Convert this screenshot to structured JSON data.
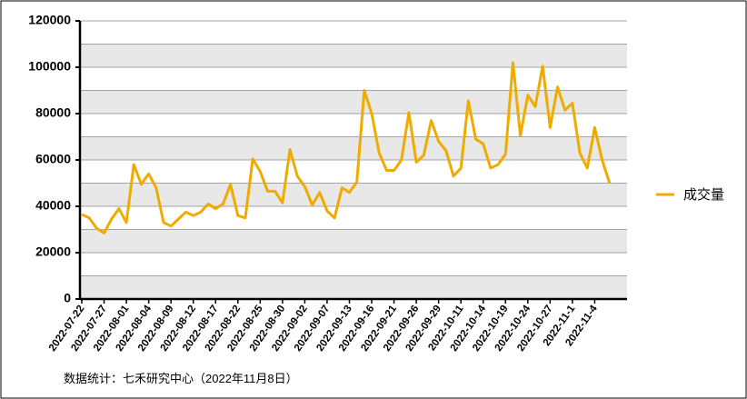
{
  "chart_data": {
    "type": "line",
    "categories": [
      "2022-07-22",
      null,
      null,
      "2022-07-27",
      null,
      null,
      "2022-08-01",
      null,
      null,
      "2022-08-04",
      null,
      null,
      "2022-08-09",
      null,
      null,
      "2022-08-12",
      null,
      null,
      "2022-08-17",
      null,
      null,
      "2022-08-22",
      null,
      null,
      "2022-08-25",
      null,
      null,
      "2022-08-30",
      null,
      null,
      "2022-09-02",
      null,
      null,
      "2022-09-07",
      null,
      null,
      "2022-09-13",
      null,
      null,
      "2022-09-16",
      null,
      null,
      "2022-09-21",
      null,
      null,
      "2022-09-26",
      null,
      null,
      "2022-09-29",
      null,
      null,
      "2022-10-11",
      null,
      null,
      "2022-10-14",
      null,
      null,
      "2022-10-19",
      null,
      null,
      "2022-10-24",
      null,
      null,
      "2022-10-27",
      null,
      null,
      "2022-11-1",
      null,
      null,
      "2022-11-4",
      null,
      null
    ],
    "series": [
      {
        "name": "成交量",
        "color": "#f0ab00",
        "values": [
          36500,
          35000,
          30500,
          28500,
          34500,
          39000,
          33000,
          58000,
          49500,
          54000,
          48000,
          33000,
          31500,
          34500,
          37500,
          36000,
          37500,
          41000,
          39000,
          41000,
          49500,
          36000,
          35000,
          60500,
          55000,
          46500,
          46500,
          41500,
          64500,
          53000,
          48500,
          40500,
          46000,
          38000,
          35000,
          48000,
          46000,
          50500,
          90000,
          80000,
          63000,
          55500,
          55500,
          60000,
          80500,
          59000,
          62000,
          77000,
          68000,
          64000,
          53000,
          56500,
          85500,
          69000,
          67000,
          56500,
          58000,
          62500,
          102000,
          70500,
          88000,
          83000,
          100500,
          74000,
          91500,
          81500,
          84500,
          63000,
          56500,
          74000,
          60000,
          50000
        ]
      }
    ],
    "ylim": [
      0,
      120000
    ],
    "yticks": [
      0,
      20000,
      40000,
      60000,
      80000,
      100000,
      120000
    ],
    "grid": true,
    "legend": "right",
    "source": "数据统计：七禾研究中心（2022年11月8日）"
  }
}
